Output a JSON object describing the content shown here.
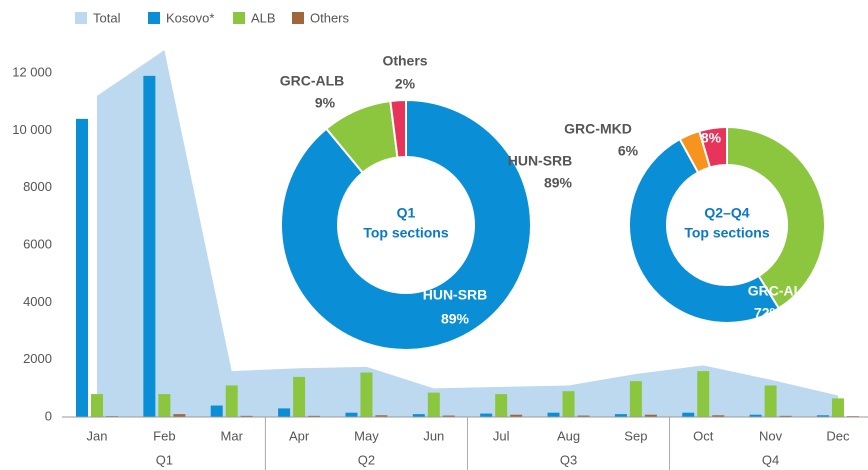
{
  "chart_data": [
    {
      "type": "bar",
      "categories": [
        "Jan",
        "Feb",
        "Mar",
        "Apr",
        "May",
        "Jun",
        "Jul",
        "Aug",
        "Sep",
        "Oct",
        "Nov",
        "Dec"
      ],
      "groups": [
        "Q1",
        "Q2",
        "Q3",
        "Q4"
      ],
      "series": [
        {
          "name": "Total",
          "type": "area",
          "color": "#bcd9f0",
          "values": [
            11200,
            12800,
            1600,
            1700,
            1750,
            1000,
            1050,
            1100,
            1500,
            1800,
            1300,
            750
          ]
        },
        {
          "name": "Kosovo*",
          "color": "#0a8fd6",
          "values": [
            10400,
            11900,
            400,
            300,
            150,
            100,
            120,
            150,
            100,
            150,
            80,
            60
          ]
        },
        {
          "name": "ALB",
          "color": "#8cc63f",
          "values": [
            800,
            800,
            1100,
            1400,
            1550,
            850,
            800,
            900,
            1250,
            1600,
            1100,
            650
          ]
        },
        {
          "name": "Others",
          "color": "#a0683a",
          "values": [
            30,
            100,
            40,
            40,
            60,
            50,
            80,
            50,
            80,
            60,
            40,
            30
          ]
        }
      ],
      "ylim": [
        0,
        12000
      ],
      "yticks": [
        0,
        2000,
        4000,
        6000,
        8000,
        {
          "value": 10000,
          "label": "10 000"
        },
        {
          "value": 12000,
          "label": "12 000"
        }
      ],
      "grid": false,
      "legend": "top-left"
    },
    {
      "type": "pie",
      "title": "Q1",
      "subtitle": "Top sections",
      "categories": [
        "HUN-SRB",
        "GRC-ALB",
        "Others"
      ],
      "values": [
        89,
        9,
        2
      ],
      "value_labels": [
        "89%",
        "9%",
        "2%"
      ],
      "colors": [
        "#0a8fd6",
        "#8cc63f",
        "#e8335a"
      ]
    },
    {
      "type": "pie",
      "title": "Q2–Q4",
      "subtitle": "Top sections",
      "categories": [
        "GRC-ALB",
        "HUN-SRB",
        "GRC-MKD",
        "Others"
      ],
      "values": [
        72,
        89,
        6,
        8
      ],
      "value_labels": [
        "72%",
        "89%",
        "6%",
        "8%"
      ],
      "colors": [
        "#8cc63f",
        "#0a8fd6",
        "#f7941d",
        "#e8335a"
      ]
    }
  ]
}
